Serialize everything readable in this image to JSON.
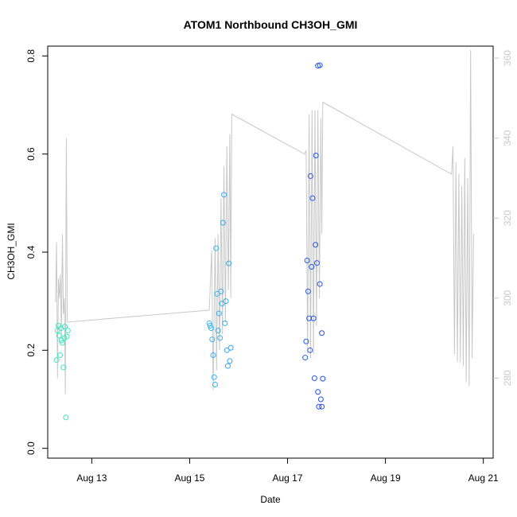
{
  "chart_data": {
    "type": "scatter",
    "title": "ATOM1 Northbound CH3OH_GMI",
    "xlabel": "Date",
    "ylabel": "CH3OH_GMI",
    "xlim": [
      12.1,
      21.2
    ],
    "ylim": [
      -0.02,
      0.82
    ],
    "y2lim": [
      260,
      363
    ],
    "x_ticks": [
      {
        "v": 13,
        "label": "Aug 13"
      },
      {
        "v": 15,
        "label": "Aug 15"
      },
      {
        "v": 17,
        "label": "Aug 17"
      },
      {
        "v": 19,
        "label": "Aug 19"
      },
      {
        "v": 21,
        "label": "Aug 21"
      }
    ],
    "y_ticks": [
      {
        "v": 0.0,
        "label": "0.0"
      },
      {
        "v": 0.2,
        "label": "0.2"
      },
      {
        "v": 0.4,
        "label": "0.4"
      },
      {
        "v": 0.6,
        "label": "0.6"
      },
      {
        "v": 0.8,
        "label": "0.8"
      }
    ],
    "y2_ticks": [
      {
        "v": 280,
        "label": "280"
      },
      {
        "v": 300,
        "label": "300"
      },
      {
        "v": 320,
        "label": "320"
      },
      {
        "v": 340,
        "label": "340"
      },
      {
        "v": 360,
        "label": "360"
      }
    ],
    "grid": false,
    "line_color": "#c8c8c8",
    "colors": {
      "start": "#3fe8b8",
      "mid1": "#35c8f0",
      "mid2": "#2040ec",
      "end": "#8a1ee8"
    },
    "line_series": [
      [
        12.26,
        299
      ],
      [
        12.28,
        314
      ],
      [
        12.3,
        280
      ],
      [
        12.32,
        305
      ],
      [
        12.34,
        300
      ],
      [
        12.36,
        306
      ],
      [
        12.38,
        290
      ],
      [
        12.4,
        316
      ],
      [
        12.42,
        296
      ],
      [
        12.44,
        300
      ],
      [
        12.46,
        276
      ],
      [
        12.48,
        340
      ],
      [
        12.5,
        294
      ],
      [
        15.4,
        297
      ],
      [
        15.45,
        312
      ],
      [
        15.48,
        277
      ],
      [
        15.52,
        315
      ],
      [
        15.55,
        282
      ],
      [
        15.58,
        316
      ],
      [
        15.61,
        287
      ],
      [
        15.64,
        325
      ],
      [
        15.67,
        291
      ],
      [
        15.7,
        333
      ],
      [
        15.73,
        294
      ],
      [
        15.76,
        338
      ],
      [
        15.79,
        302
      ],
      [
        15.82,
        341
      ],
      [
        15.84,
        300
      ],
      [
        15.86,
        346
      ],
      [
        17.35,
        336
      ],
      [
        17.38,
        337
      ],
      [
        17.41,
        286
      ],
      [
        17.44,
        346
      ],
      [
        17.47,
        285
      ],
      [
        17.5,
        347
      ],
      [
        17.53,
        286
      ],
      [
        17.56,
        347
      ],
      [
        17.59,
        293
      ],
      [
        17.62,
        347
      ],
      [
        17.65,
        300
      ],
      [
        17.68,
        345
      ],
      [
        17.7,
        316
      ],
      [
        17.72,
        349
      ],
      [
        20.35,
        331
      ],
      [
        20.38,
        338
      ],
      [
        20.41,
        286
      ],
      [
        20.44,
        334
      ],
      [
        20.47,
        284
      ],
      [
        20.5,
        331
      ],
      [
        20.53,
        284
      ],
      [
        20.56,
        328
      ],
      [
        20.59,
        283
      ],
      [
        20.62,
        335
      ],
      [
        20.65,
        279
      ],
      [
        20.68,
        330
      ],
      [
        20.71,
        278
      ],
      [
        20.74,
        362
      ],
      [
        20.77,
        285
      ],
      [
        20.8,
        316
      ]
    ],
    "points": [
      [
        12.28,
        0.18
      ],
      [
        12.3,
        0.24
      ],
      [
        12.32,
        0.25
      ],
      [
        12.33,
        0.23
      ],
      [
        12.35,
        0.19
      ],
      [
        12.37,
        0.245
      ],
      [
        12.38,
        0.22
      ],
      [
        12.4,
        0.215
      ],
      [
        12.42,
        0.165
      ],
      [
        12.44,
        0.225
      ],
      [
        12.45,
        0.248
      ],
      [
        12.47,
        0.063
      ],
      [
        12.49,
        0.228
      ],
      [
        12.51,
        0.24
      ],
      [
        15.4,
        0.255
      ],
      [
        15.42,
        0.25
      ],
      [
        15.44,
        0.245
      ],
      [
        15.46,
        0.222
      ],
      [
        15.48,
        0.19
      ],
      [
        15.5,
        0.145
      ],
      [
        15.52,
        0.13
      ],
      [
        15.54,
        0.408
      ],
      [
        15.56,
        0.315
      ],
      [
        15.58,
        0.24
      ],
      [
        15.6,
        0.275
      ],
      [
        15.62,
        0.225
      ],
      [
        15.64,
        0.32
      ],
      [
        15.66,
        0.295
      ],
      [
        15.68,
        0.46
      ],
      [
        15.7,
        0.517
      ],
      [
        15.72,
        0.255
      ],
      [
        15.74,
        0.3
      ],
      [
        15.76,
        0.2
      ],
      [
        15.78,
        0.168
      ],
      [
        15.8,
        0.377
      ],
      [
        15.82,
        0.178
      ],
      [
        15.84,
        0.205
      ],
      [
        17.36,
        0.185
      ],
      [
        17.38,
        0.218
      ],
      [
        17.4,
        0.383
      ],
      [
        17.42,
        0.32
      ],
      [
        17.44,
        0.265
      ],
      [
        17.46,
        0.2
      ],
      [
        17.47,
        0.555
      ],
      [
        17.49,
        0.37
      ],
      [
        17.51,
        0.51
      ],
      [
        17.53,
        0.265
      ],
      [
        17.55,
        0.143
      ],
      [
        17.57,
        0.415
      ],
      [
        17.58,
        0.597
      ],
      [
        17.6,
        0.378
      ],
      [
        17.62,
        0.115
      ],
      [
        17.64,
        0.085
      ],
      [
        17.66,
        0.335
      ],
      [
        17.68,
        0.1
      ],
      [
        17.7,
        0.085
      ],
      [
        17.62,
        0.78
      ],
      [
        17.66,
        0.781
      ],
      [
        17.7,
        0.235
      ],
      [
        17.72,
        0.142
      ]
    ]
  }
}
